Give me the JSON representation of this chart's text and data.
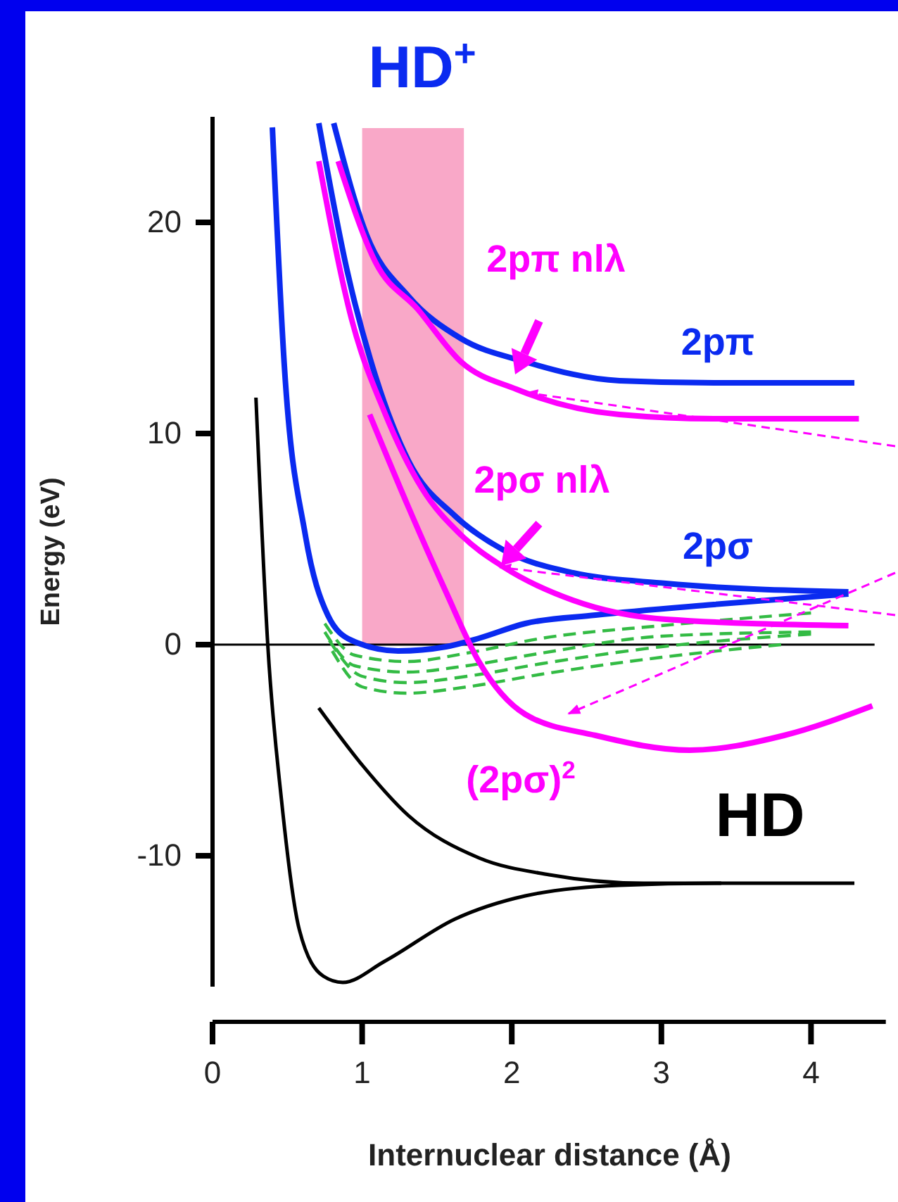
{
  "chart_data": {
    "type": "line",
    "title": "HD$^{+}$",
    "xlabel": "Internuclear distance (Å)",
    "ylabel": "Energy (eV)",
    "xlim": [
      0,
      4.5
    ],
    "xticks": [
      0,
      1,
      2,
      3,
      4
    ],
    "ylim": [
      -16.2,
      25
    ],
    "yticks": [
      -10,
      0,
      10,
      20
    ],
    "ref_lines": [
      {
        "axis": "y",
        "value": 0,
        "color": "#000000"
      }
    ],
    "bands": [
      {
        "axis": "x",
        "from": 1.0,
        "to": 1.68,
        "color": "#f9a8c8"
      }
    ],
    "series": [
      {
        "name": "HD",
        "color": "#000000",
        "x": [
          0.29,
          0.37,
          0.46,
          0.58,
          0.74,
          0.87,
          1.15,
          1.62,
          2.09,
          2.72,
          3.4,
          4.29
        ],
        "values": [
          11.7,
          -0.1,
          -7.3,
          -13.5,
          -15.7,
          -16.0,
          -15.0,
          -13.0,
          -11.9,
          -11.4,
          -11.3,
          -11.3
        ]
      },
      {
        "color": "#000000",
        "x": [
          0.71,
          1.0,
          1.31,
          1.78,
          2.25,
          2.88,
          3.4
        ],
        "values": [
          -3.0,
          -5.7,
          -8.1,
          -10.1,
          -10.9,
          -11.3,
          -11.3
        ]
      },
      {
        "color": "#0a2af0",
        "x": [
          0.4,
          0.48,
          0.62,
          0.77,
          0.93,
          1.24,
          1.56,
          1.78,
          2.09,
          2.56,
          3.35,
          4.25
        ],
        "values": [
          24.5,
          13.2,
          5.2,
          1.4,
          0.2,
          -0.3,
          -0.1,
          0.3,
          1.0,
          1.4,
          1.9,
          2.4
        ]
      },
      {
        "name": "2pσ",
        "color": "#0a2af0",
        "x": [
          0.71,
          0.9,
          1.09,
          1.31,
          1.62,
          1.94,
          2.41,
          3.03,
          4.25
        ],
        "values": [
          24.7,
          17.7,
          12.7,
          8.7,
          6.1,
          4.5,
          3.4,
          2.9,
          2.5
        ]
      },
      {
        "name": "2pπ",
        "color": "#0a2af0",
        "x": [
          0.81,
          1.03,
          1.31,
          1.66,
          2.09,
          2.72,
          3.35,
          4.29
        ],
        "values": [
          24.7,
          19.4,
          16.5,
          14.5,
          13.4,
          12.5,
          12.4,
          12.4
        ]
      },
      {
        "name": "2pσ nlλ",
        "color": "#ff00ff",
        "x": [
          0.71,
          0.93,
          1.15,
          1.4,
          1.66,
          1.94,
          2.41,
          3.03,
          4.25
        ],
        "values": [
          22.9,
          15.4,
          11.0,
          7.4,
          5.2,
          3.7,
          2.1,
          1.2,
          0.9
        ]
      },
      {
        "name": "2pπ nlλ",
        "color": "#ff00ff",
        "x": [
          0.84,
          1.09,
          1.37,
          1.66,
          2.03,
          2.72,
          3.35,
          4.32
        ],
        "values": [
          22.9,
          18.1,
          15.9,
          13.4,
          12.1,
          10.9,
          10.7,
          10.7
        ]
      },
      {
        "name": "(2pσ)$^{2}$",
        "color": "#ff00ff",
        "x": [
          1.05,
          1.31,
          1.56,
          1.78,
          2.09,
          2.56,
          3.19,
          3.82,
          4.41
        ],
        "values": [
          10.9,
          6.5,
          2.5,
          -0.8,
          -3.3,
          -4.3,
          -5.0,
          -4.3,
          -2.9
        ]
      },
      {
        "color": "#33bb44",
        "line_style": "dashed",
        "x": [
          0.75,
          0.95,
          1.3,
          1.7,
          2.2,
          3,
          4
        ],
        "values": [
          1.0,
          -0.5,
          -0.8,
          -0.4,
          0.3,
          0.9,
          1.5
        ]
      },
      {
        "color": "#33bb44",
        "line_style": "dashed",
        "x": [
          0.75,
          0.95,
          1.3,
          1.7,
          2.2,
          3,
          4
        ],
        "values": [
          0.6,
          -1.0,
          -1.3,
          -1.0,
          -0.4,
          0.4,
          0.6
        ]
      },
      {
        "color": "#33bb44",
        "line_style": "dashed",
        "x": [
          0.78,
          1.0,
          1.3,
          1.7,
          2.2,
          3,
          4
        ],
        "values": [
          0.2,
          -1.5,
          -1.8,
          -1.5,
          -0.9,
          -0.1,
          0.5
        ]
      },
      {
        "color": "#33bb44",
        "line_style": "dashed",
        "x": [
          0.8,
          1.0,
          1.3,
          1.7,
          2.2,
          3,
          3.8
        ],
        "values": [
          -0.3,
          -2.0,
          -2.3,
          -2.0,
          -1.4,
          -0.6,
          0.0
        ]
      }
    ]
  }
}
